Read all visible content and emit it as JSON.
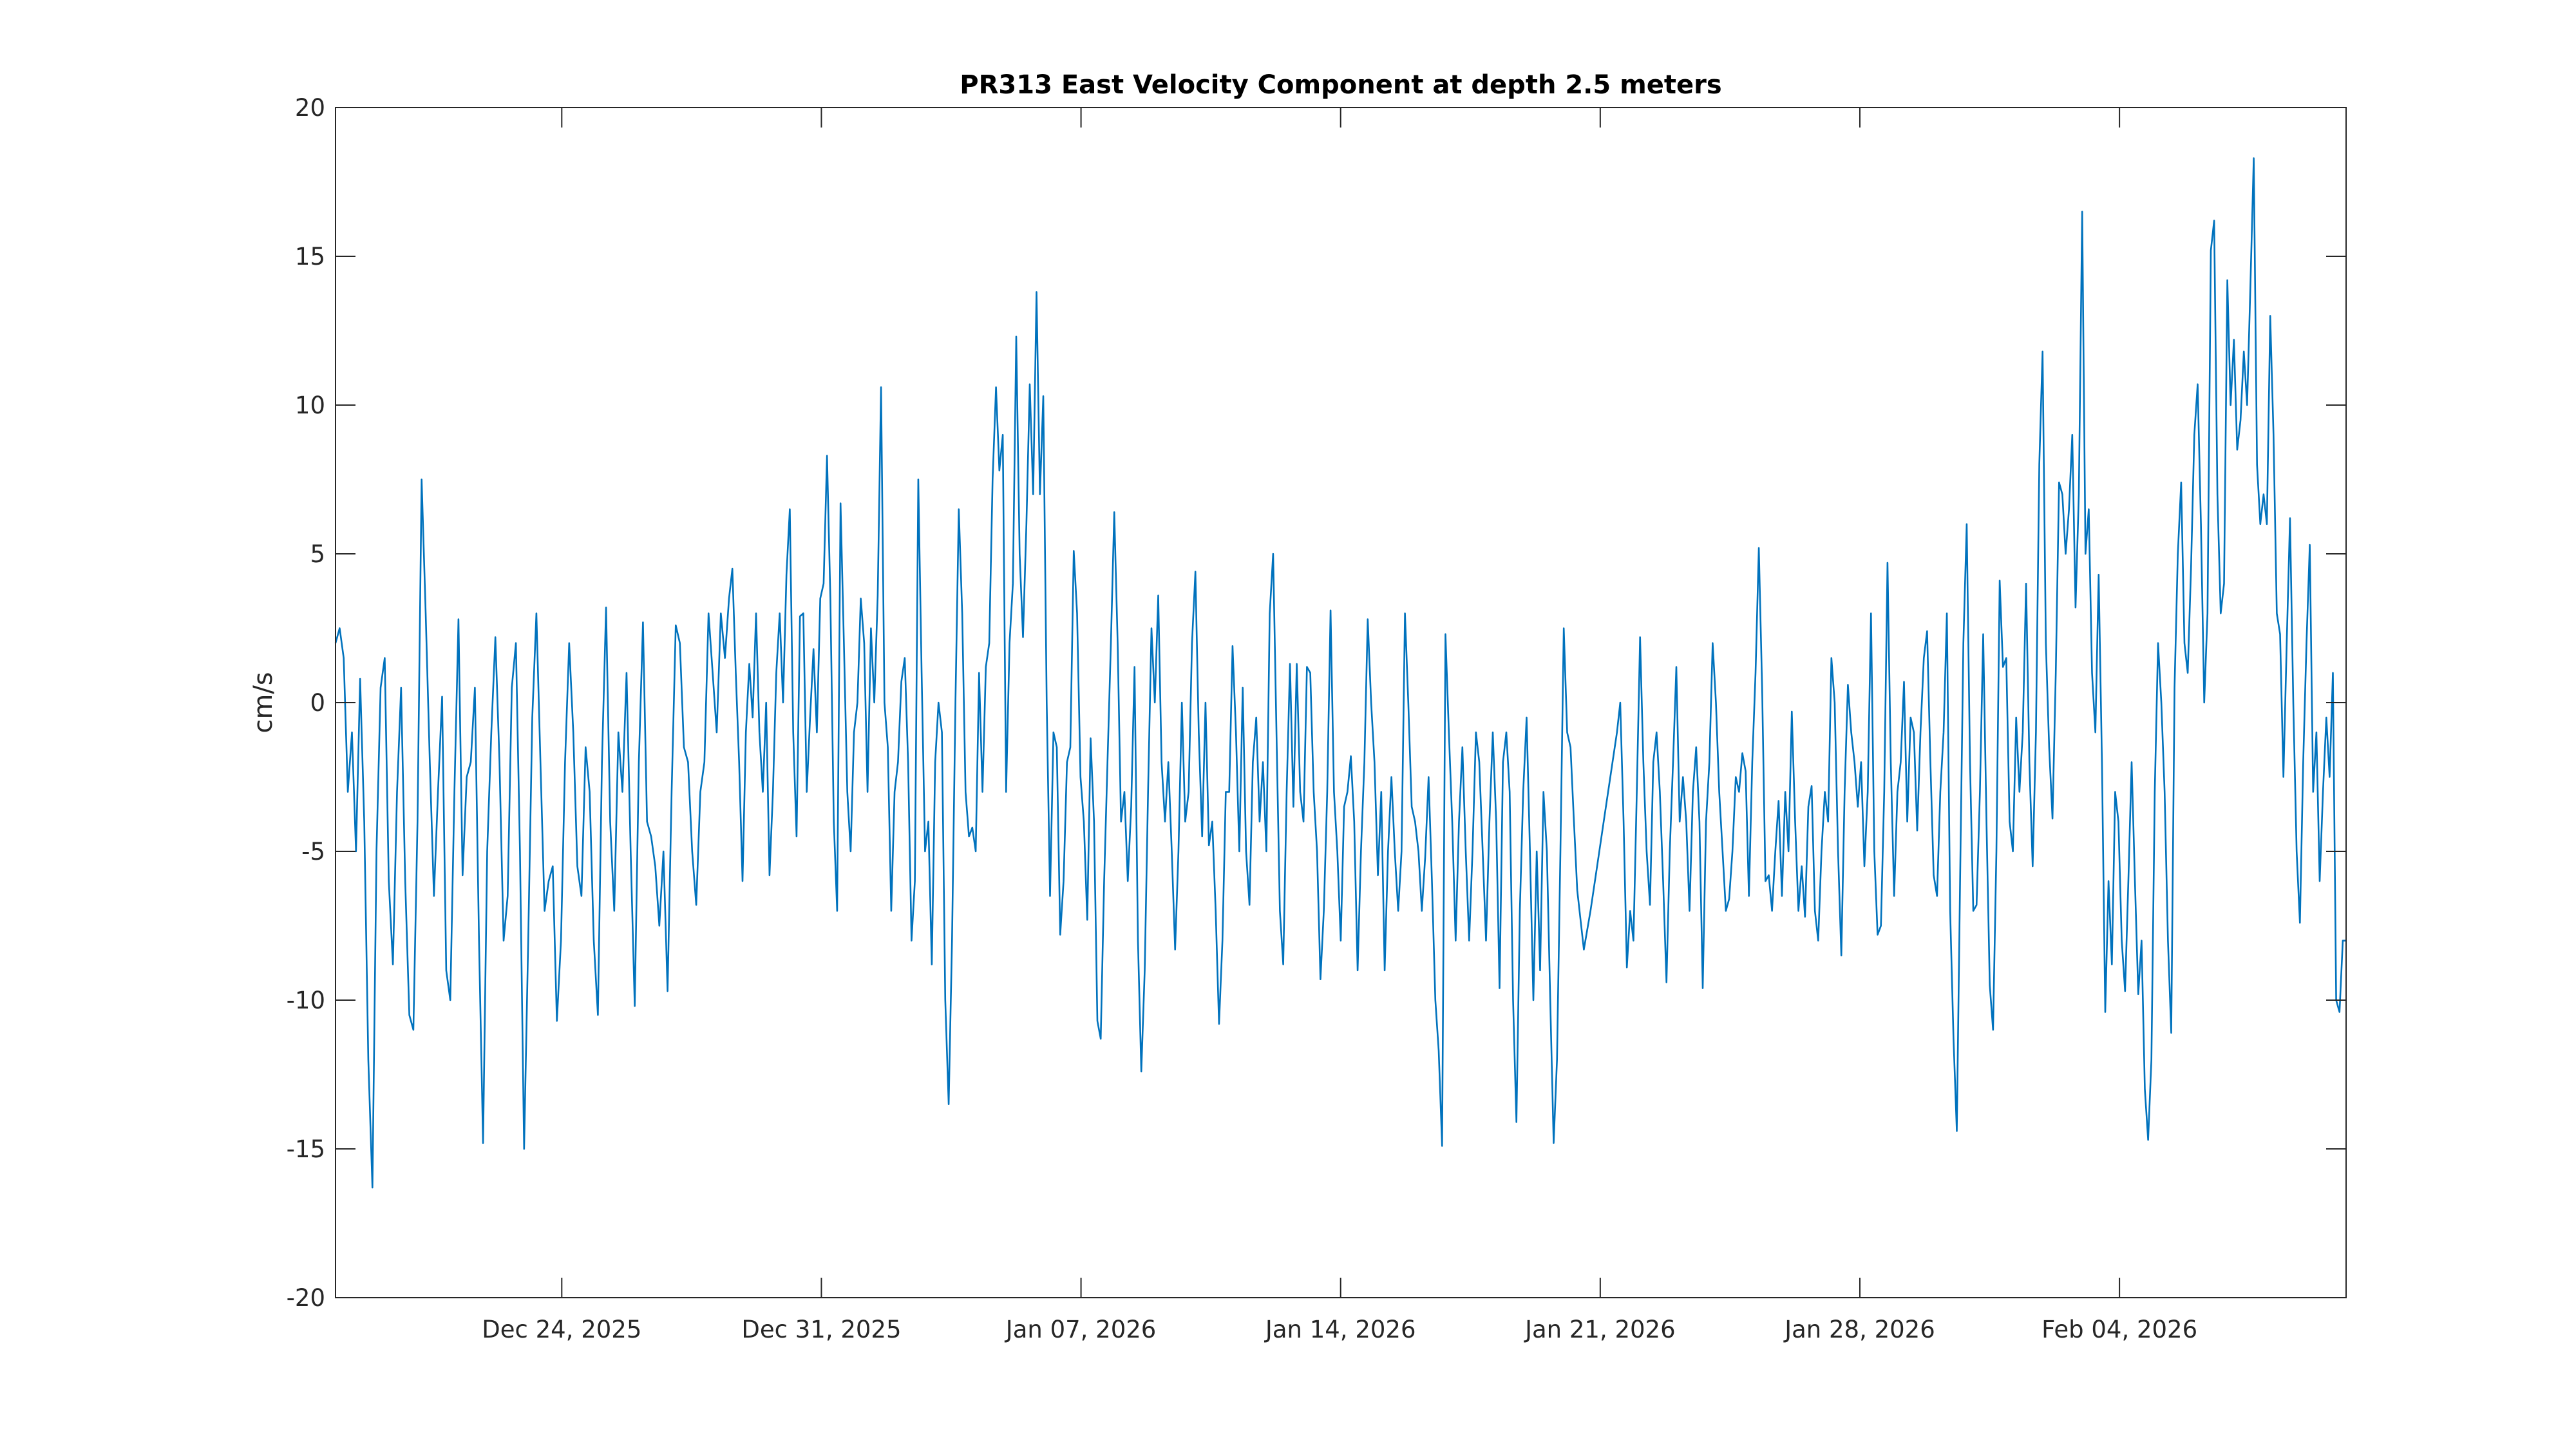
{
  "chart_data": {
    "type": "line",
    "title": "PR313 East Velocity Component at depth 2.5 meters",
    "xlabel": "",
    "ylabel": "cm/s",
    "x_units": "days since Dec 18, 2025 00:00",
    "xlim": [
      -0.1,
      54.11
    ],
    "ylim": [
      -20,
      20
    ],
    "grid": false,
    "legend": "none",
    "colors": {
      "line": "#0072BD",
      "axis": "#262626"
    },
    "x_ticks": [
      {
        "value": 6,
        "label": "Dec 24, 2025"
      },
      {
        "value": 13,
        "label": "Dec 31, 2025"
      },
      {
        "value": 20,
        "label": "Jan 07, 2026"
      },
      {
        "value": 27,
        "label": "Jan 14, 2026"
      },
      {
        "value": 34,
        "label": "Jan 21, 2026"
      },
      {
        "value": 41,
        "label": "Jan 28, 2026"
      },
      {
        "value": 48,
        "label": "Feb 04, 2026"
      }
    ],
    "y_ticks": [
      {
        "value": 20,
        "label": "20"
      },
      {
        "value": 15,
        "label": "15"
      },
      {
        "value": 10,
        "label": "10"
      },
      {
        "value": 5,
        "label": "5"
      },
      {
        "value": 0,
        "label": "0"
      },
      {
        "value": -5,
        "label": "-5"
      },
      {
        "value": -10,
        "label": "-10"
      },
      {
        "value": -15,
        "label": "-15"
      },
      {
        "value": -20,
        "label": "-20"
      }
    ],
    "series": [
      {
        "name": "East velocity",
        "segments": [
          {
            "t_start": -0.1,
            "t_end": 10.51,
            "values": [
              2,
              2.5,
              1.5,
              -3,
              -1,
              -5,
              0.8,
              -4,
              -12,
              -16.3,
              -5,
              0.5,
              1.5,
              -6,
              -8.8,
              -3,
              0.5,
              -6,
              -10.5,
              -11,
              -4,
              7.5,
              3,
              -2,
              -6.5,
              -3,
              0.2,
              -9,
              -10,
              -3,
              2.8,
              -5.8,
              -2.5,
              -2,
              0.5,
              -8,
              -14.8,
              -5,
              -1,
              2.2,
              -2,
              -8,
              -6.5,
              0.5,
              2,
              -5,
              -15,
              -8,
              -0.5,
              3,
              -2,
              -7,
              -6,
              -5.5,
              -10.7,
              -8,
              -2,
              2,
              -1,
              -5.5,
              -6.5,
              -1.5,
              -3,
              -8,
              -10.5,
              -2,
              3.2,
              -4,
              -7,
              -1,
              -3,
              1,
              -5,
              -10.2,
              -2,
              2.7,
              -4,
              -4.5,
              -5.5,
              -7.5,
              -5,
              -9.7,
              -3,
              2.6,
              2,
              -1.5,
              -2,
              -5,
              -6.8,
              -3,
              -2,
              3,
              1,
              -1,
              3,
              1.5,
              3.5
            ]
          },
          {
            "t_start": 10.6,
            "t_end": 33.29,
            "values": [
              4.5,
              1,
              -2,
              -6,
              -1,
              1.3,
              -0.5,
              3,
              -1,
              -3,
              0,
              -5.8,
              -3,
              1,
              3,
              0,
              4.3,
              6.5,
              -1,
              -4.5,
              2.9,
              3,
              -3,
              -0.5,
              1.8,
              -1,
              3.5,
              4,
              8.3,
              3.5,
              -4,
              -7,
              6.7,
              2,
              -3,
              -5,
              -1,
              0,
              3.5,
              2,
              -3,
              2.5,
              0,
              3.6,
              10.6,
              0,
              -1.5,
              -7,
              -3,
              -2,
              0.7,
              1.5,
              -2,
              -8,
              -6,
              7.5,
              1,
              -5,
              -4,
              -8.8,
              -2,
              0,
              -1,
              -10,
              -13.5,
              -8,
              0,
              6.5,
              3,
              -3,
              -4.5,
              -4.2,
              -5,
              1,
              -3,
              1.2,
              2,
              7.5,
              10.6,
              7.8,
              9,
              -3,
              2,
              4,
              12.3,
              5,
              2.2,
              6,
              10.7,
              7,
              13.8,
              7,
              10.3,
              0,
              -6.5,
              -1,
              -1.5,
              -7.8,
              -6,
              -2,
              -1.5,
              5.1,
              3,
              -2.5,
              -4,
              -7.3,
              -1.2,
              -4,
              -10.7,
              -11.3,
              -6,
              -2,
              2,
              6.4,
              2,
              -4,
              -3,
              -6,
              -3.5,
              1.2,
              -8,
              -12.4,
              -9,
              -3,
              2.5,
              0,
              3.6,
              -2,
              -4,
              -2,
              -5,
              -8.3,
              -5,
              0,
              -4,
              -3,
              2,
              4.4,
              -1,
              -4.5,
              0,
              -4.8,
              -4,
              -7,
              -10.8,
              -8,
              -3,
              -3,
              1.9,
              -1,
              -5,
              0.5,
              -5,
              -6.8,
              -2,
              -0.5,
              -4,
              -2,
              -5,
              3,
              5,
              -1,
              -7,
              -8.8,
              -3,
              1.3,
              -3.5,
              1.3,
              -3,
              -4,
              1.2,
              1,
              -3,
              -5,
              -9.3,
              -7,
              -3,
              3.1,
              -3,
              -5,
              -8,
              -3.5,
              -3,
              -1.8,
              -4,
              -9,
              -5,
              -2,
              2.8,
              0,
              -2,
              -5.8,
              -3,
              -9,
              -5,
              -2.5,
              -5,
              -7,
              -5,
              3,
              0,
              -3.5,
              -4,
              -5,
              -7,
              -5.2,
              -2.5,
              -6,
              -10,
              -11.7,
              -14.9,
              2.3,
              -1,
              -4,
              -8,
              -4,
              -1.5,
              -5,
              -8,
              -5,
              -1,
              -2,
              -5,
              -8,
              -4,
              -1,
              -4,
              -9.6,
              -2,
              -1,
              -3,
              -10,
              -14.1,
              -7,
              -3,
              -0.5,
              -5,
              -10,
              -5,
              -9,
              -3,
              -5,
              -10,
              -14.8,
              -12,
              -5,
              2.5,
              -1,
              -1.5,
              -4
            ]
          },
          {
            "t_start": 33.38,
            "t_end": 34.45,
            "values": [
              -6.3,
              -8.3,
              -7,
              -5.5,
              -4,
              -2.5,
              -1
            ]
          },
          {
            "t_start": 34.54,
            "t_end": 54.11,
            "values": [
              0,
              -4,
              -8.9,
              -7,
              -8,
              -3,
              2.2,
              -2,
              -5,
              -6.8,
              -2,
              -1,
              -3,
              -6,
              -9.4,
              -5,
              -2,
              1.2,
              -4,
              -2.5,
              -4,
              -7,
              -3,
              -1.5,
              -4,
              -9.6,
              -4,
              -2,
              2,
              0,
              -3,
              -5,
              -7,
              -6.6,
              -5,
              -2.5,
              -3,
              -1.7,
              -2.3,
              -6.5,
              -2,
              1,
              5.2,
              0.5,
              -6,
              -5.8,
              -7,
              -5,
              -3.3,
              -6.5,
              -3,
              -5,
              -0.3,
              -4,
              -7,
              -5.5,
              -7.2,
              -3.5,
              -2.8,
              -7,
              -8,
              -5,
              -3,
              -4,
              1.5,
              0,
              -5,
              -8.5,
              -3,
              0.6,
              -1,
              -2,
              -3.5,
              -2,
              -5.5,
              -3,
              3,
              -5,
              -7.8,
              -7.5,
              -3,
              4.7,
              -2,
              -6.5,
              -3,
              -2,
              0.7,
              -4,
              -0.5,
              -1,
              -4.3,
              -1,
              1.5,
              2.4,
              -2,
              -5.8,
              -6.5,
              -3,
              -1,
              3,
              -7,
              -11.3,
              -14.4,
              -6,
              2,
              6,
              -2,
              -7,
              -6.8,
              -3,
              2.3,
              -4,
              -9.5,
              -11,
              -5,
              4.1,
              1.2,
              1.5,
              -4,
              -5,
              -0.5,
              -3,
              -1,
              4,
              -2,
              -5.5,
              -1,
              8,
              11.8,
              2,
              -1.5,
              -3.9,
              1,
              7.4,
              7,
              5,
              6.5,
              9,
              3.2,
              7,
              16.5,
              5,
              6.5,
              1,
              -1,
              4.3,
              -2,
              -10.4,
              -6,
              -8.8,
              -3,
              -4,
              -8,
              -9.7,
              -6,
              -2,
              -6,
              -9.8,
              -8,
              -13,
              -14.7,
              -12,
              -3,
              2,
              0,
              -3,
              -8,
              -11.1,
              0.5,
              5,
              7.4,
              2,
              1,
              4.5,
              9,
              10.7,
              6,
              0,
              3,
              15.2,
              16.2,
              7,
              3,
              4,
              14.2,
              10,
              12.2,
              8.5,
              9.5,
              11.8,
              10,
              14,
              18.3,
              8,
              6,
              7,
              6,
              13,
              9,
              3,
              2.3,
              -2.5,
              2,
              6.2,
              0,
              -5,
              -7.4,
              -2,
              2,
              5.3,
              -3,
              -1,
              -6,
              -3,
              -0.5,
              -2.5,
              1,
              -10,
              -10.4,
              -8,
              -8
            ]
          }
        ]
      }
    ]
  }
}
